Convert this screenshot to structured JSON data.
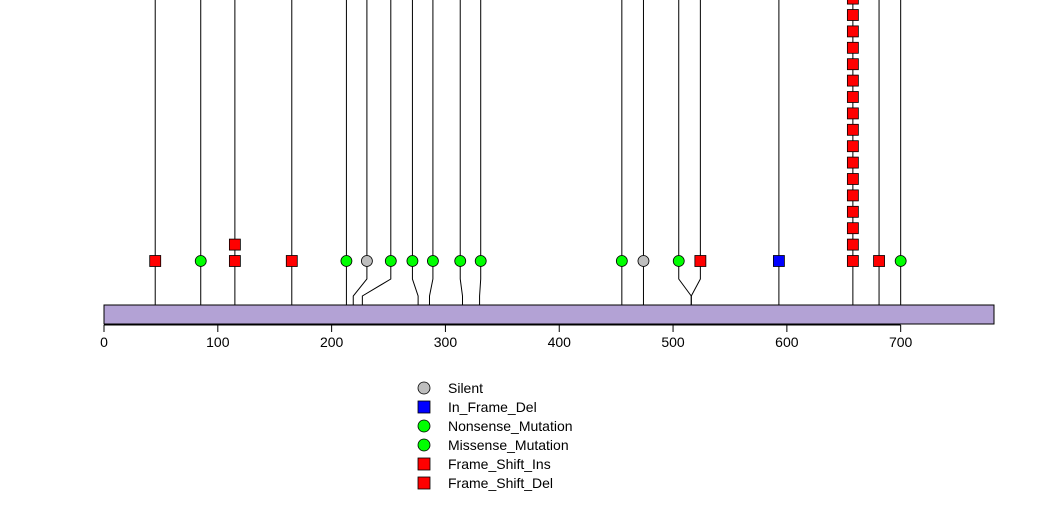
{
  "chart_data": {
    "type": "lollipop",
    "protein_length": 782,
    "xlim": [
      0,
      782
    ],
    "x_ticks": [
      "0",
      "100",
      "200",
      "300",
      "400",
      "500",
      "600",
      "700"
    ],
    "x_tick_values": [
      0,
      100,
      200,
      300,
      400,
      500,
      600,
      700
    ],
    "mutation_types": {
      "Silent": {
        "shape": "circle",
        "color": "#bebebe"
      },
      "In_Frame_Del": {
        "shape": "square",
        "color": "#0000ff"
      },
      "Nonsense_Mutation": {
        "shape": "circle",
        "color": "#00ff00"
      },
      "Missense_Mutation": {
        "shape": "circle",
        "color": "#00ff00"
      },
      "Frame_Shift_Ins": {
        "shape": "square",
        "color": "#ff0000"
      },
      "Frame_Shift_Del": {
        "shape": "square",
        "color": "#ff0000"
      }
    },
    "legend": [
      "Silent",
      "In_Frame_Del",
      "Nonsense_Mutation",
      "Missense_Mutation",
      "Frame_Shift_Ins",
      "Frame_Shift_Del"
    ],
    "mutations": [
      {
        "position": 45,
        "label_position": 45,
        "type": "Frame_Shift_Del",
        "count": 1
      },
      {
        "position": 85,
        "label_position": 85,
        "type": "Missense_Mutation",
        "count": 1
      },
      {
        "position": 115,
        "label_position": 115,
        "type": "Frame_Shift_Del",
        "count": 2
      },
      {
        "position": 165,
        "label_position": 165,
        "type": "Frame_Shift_Del",
        "count": 1
      },
      {
        "position": 213,
        "label_position": 213,
        "type": "Missense_Mutation",
        "count": 1
      },
      {
        "position": 219,
        "label_position": 231,
        "type": "Silent",
        "count": 1
      },
      {
        "position": 227,
        "label_position": 252,
        "type": "Missense_Mutation",
        "count": 1
      },
      {
        "position": 276,
        "label_position": 271,
        "type": "Missense_Mutation",
        "count": 1
      },
      {
        "position": 286,
        "label_position": 289,
        "type": "Missense_Mutation",
        "count": 1
      },
      {
        "position": 315,
        "label_position": 313,
        "type": "Missense_Mutation",
        "count": 1
      },
      {
        "position": 330,
        "label_position": 331,
        "type": "Missense_Mutation",
        "count": 1
      },
      {
        "position": 455,
        "label_position": 455,
        "type": "Missense_Mutation",
        "count": 1
      },
      {
        "position": 474,
        "label_position": 474,
        "type": "Silent",
        "count": 1
      },
      {
        "position": 516,
        "label_position": 505,
        "type": "Missense_Mutation",
        "count": 1
      },
      {
        "position": 516,
        "label_position": 524,
        "type": "Frame_Shift_Del",
        "count": 1
      },
      {
        "position": 593,
        "label_position": 593,
        "type": "In_Frame_Del",
        "count": 1
      },
      {
        "position": 658,
        "label_position": 658,
        "type": "Frame_Shift_Del",
        "count": 17
      },
      {
        "position": 681,
        "label_position": 681,
        "type": "Frame_Shift_Del",
        "count": 1
      },
      {
        "position": 700,
        "label_position": 700,
        "type": "Missense_Mutation",
        "count": 1
      }
    ]
  }
}
